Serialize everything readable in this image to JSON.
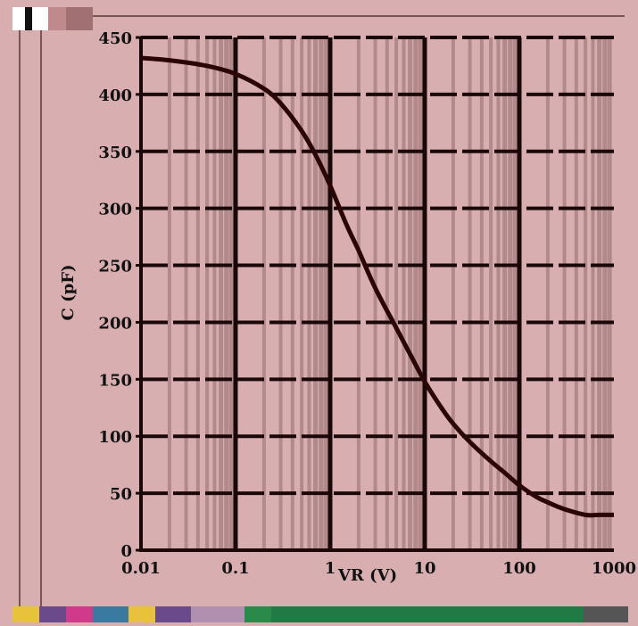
{
  "chart_data": {
    "type": "line",
    "x_scale": "log",
    "xlim": [
      0.01,
      1000
    ],
    "ylim": [
      0,
      450
    ],
    "xlabel": "VR (V)",
    "ylabel": "C (pF)",
    "x_tick_labels": [
      "0.01",
      "0.1",
      "1",
      "10",
      "100",
      "1000"
    ],
    "x_ticks": [
      0.01,
      0.1,
      1,
      10,
      100,
      1000
    ],
    "y_ticks": [
      0,
      50,
      100,
      150,
      200,
      250,
      300,
      350,
      400,
      450
    ],
    "y_tick_labels": [
      "0",
      "50",
      "100",
      "150",
      "200",
      "250",
      "300",
      "350",
      "400",
      "450"
    ],
    "grid": true,
    "series": [
      {
        "x": [
          0.01,
          0.02,
          0.05,
          0.1,
          0.2,
          0.3,
          0.5,
          0.7,
          1,
          1.5,
          2,
          3,
          5,
          7,
          10,
          15,
          20,
          30,
          50,
          70,
          100,
          150,
          200,
          300,
          500,
          700,
          1000
        ],
        "y": [
          432,
          430,
          425,
          418,
          405,
          392,
          368,
          347,
          320,
          285,
          263,
          230,
          195,
          172,
          148,
          125,
          111,
          95,
          78,
          68,
          57,
          47,
          42,
          36,
          31,
          31,
          31
        ]
      }
    ]
  },
  "colors": {
    "background": "#d8aeb0",
    "minor_grid": "#b28a8c",
    "major_grid": "#1a0808",
    "curve": "#2a0606"
  }
}
